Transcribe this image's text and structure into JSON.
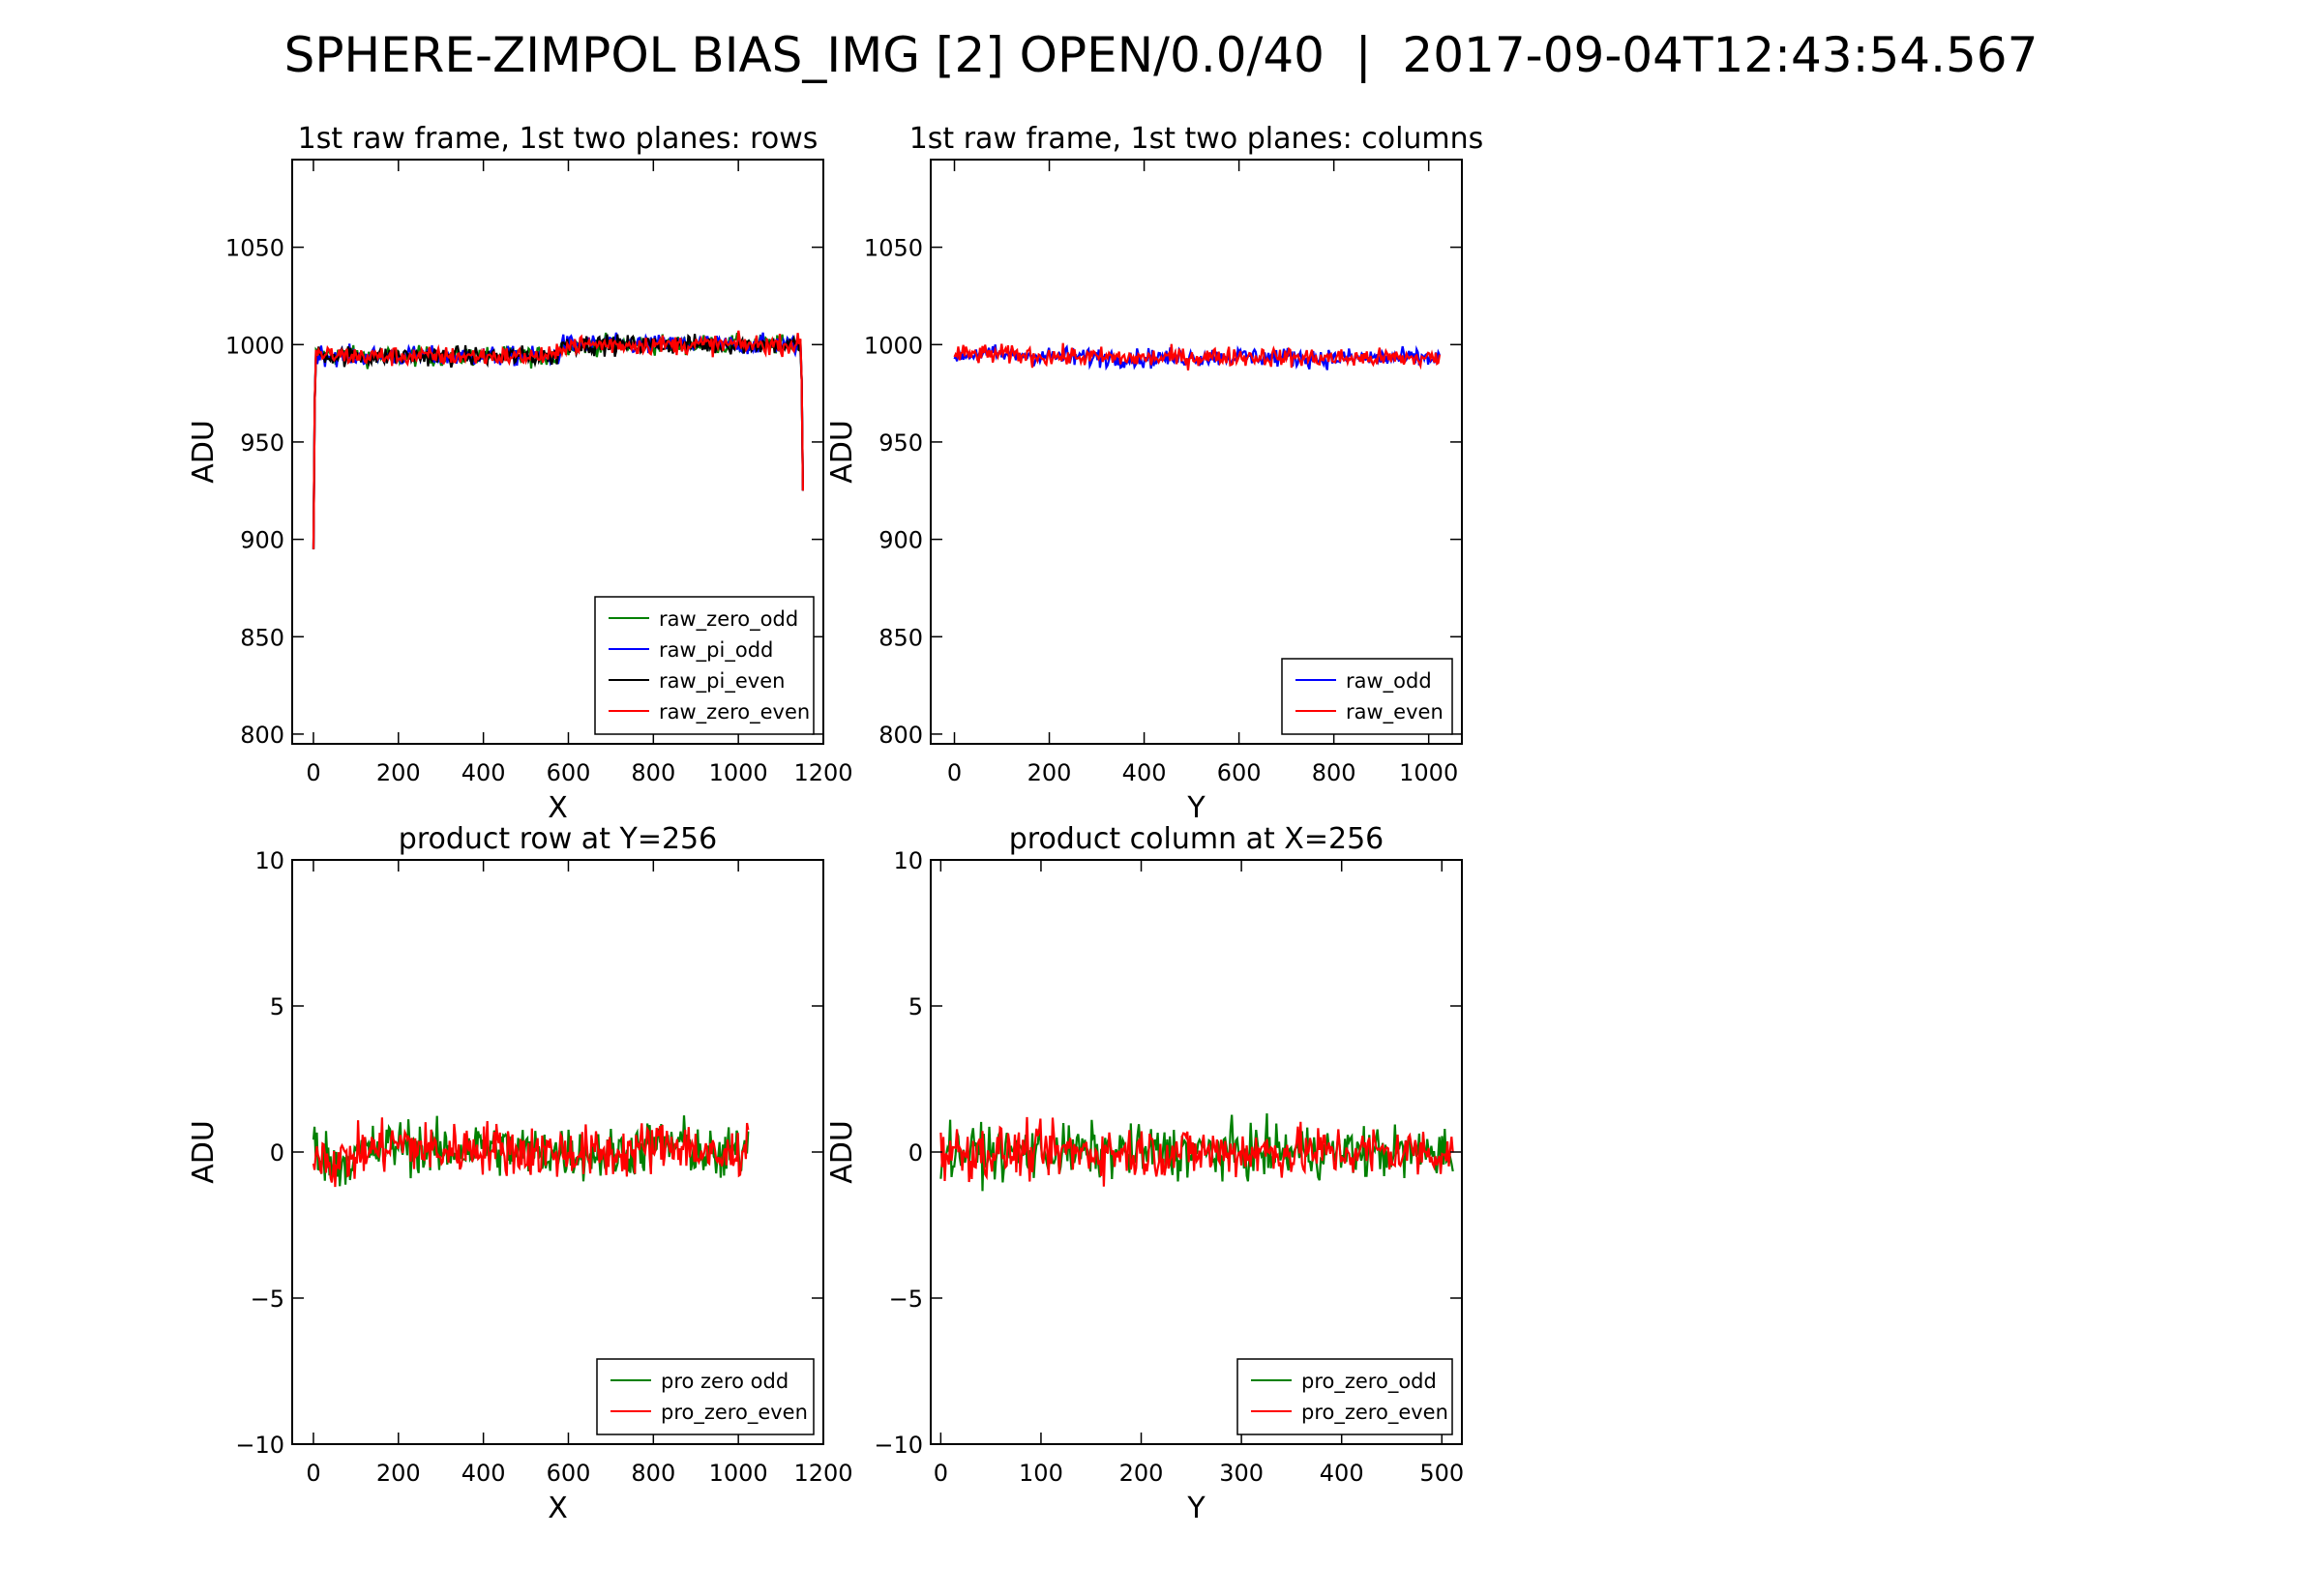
{
  "figure": {
    "title": "SPHERE-ZIMPOL BIAS_IMG [2] OPEN/0.0/40  |  2017-09-04T12:43:54.567"
  },
  "chart_data": [
    {
      "type": "line",
      "title": "1st raw frame, 1st two planes: rows",
      "xlabel": "X",
      "ylabel": "ADU",
      "xlim": [
        -50,
        1200
      ],
      "ylim": [
        795,
        1095
      ],
      "xticks": [
        0,
        200,
        400,
        600,
        800,
        1000,
        1200
      ],
      "yticks": [
        800,
        850,
        900,
        950,
        1000,
        1050
      ],
      "grid": false,
      "legend_position": "lower-right",
      "series": [
        {
          "name": "raw_zero_odd",
          "color": "#008000",
          "x": [
            0,
            4,
            8,
            100,
            200,
            300,
            400,
            500,
            575,
            585,
            700,
            800,
            900,
            1000,
            1100,
            1148,
            1152
          ],
          "y": [
            895,
            995,
            995,
            994,
            994,
            994,
            994,
            994,
            994,
            1000,
            1000,
            1000,
            1000,
            1000,
            1000,
            1000,
            925
          ],
          "noise": 2.5
        },
        {
          "name": "raw_pi_odd",
          "color": "#0000ff",
          "x": [
            0,
            4,
            8,
            100,
            200,
            300,
            400,
            500,
            575,
            585,
            700,
            800,
            900,
            1000,
            1100,
            1148,
            1152
          ],
          "y": [
            895,
            995,
            995,
            994,
            994,
            994,
            994,
            994,
            994,
            1000,
            1000,
            1000,
            1000,
            1000,
            1000,
            1000,
            925
          ],
          "noise": 2.5
        },
        {
          "name": "raw_pi_even",
          "color": "#000000",
          "x": [
            0,
            4,
            8,
            100,
            200,
            300,
            400,
            500,
            575,
            585,
            700,
            800,
            900,
            1000,
            1100,
            1148,
            1152
          ],
          "y": [
            895,
            995,
            995,
            994,
            994,
            994,
            994,
            994,
            994,
            1000,
            1000,
            1000,
            1000,
            1000,
            1000,
            1000,
            925
          ],
          "noise": 2.5
        },
        {
          "name": "raw_zero_even",
          "color": "#ff0000",
          "x": [
            0,
            4,
            8,
            100,
            200,
            300,
            400,
            500,
            575,
            585,
            700,
            800,
            900,
            1000,
            1100,
            1148,
            1152
          ],
          "y": [
            895,
            995,
            995,
            994,
            994,
            994,
            994,
            994,
            994,
            1000,
            1000,
            1000,
            1000,
            1000,
            1000,
            1000,
            925
          ],
          "noise": 2.5
        }
      ]
    },
    {
      "type": "line",
      "title": "1st raw frame, 1st two planes: columns",
      "xlabel": "Y",
      "ylabel": "ADU",
      "xlim": [
        -50,
        1070
      ],
      "ylim": [
        795,
        1095
      ],
      "xticks": [
        0,
        200,
        400,
        600,
        800,
        1000
      ],
      "yticks": [
        800,
        850,
        900,
        950,
        1000,
        1050
      ],
      "grid": false,
      "legend_position": "lower-right",
      "series": [
        {
          "name": "raw_odd",
          "color": "#0000ff",
          "x": [
            0,
            100,
            200,
            400,
            600,
            800,
            1023
          ],
          "y": [
            995,
            995,
            994,
            993,
            994,
            993,
            993
          ],
          "noise": 2.5
        },
        {
          "name": "raw_even",
          "color": "#ff0000",
          "x": [
            0,
            100,
            200,
            400,
            600,
            800,
            1023
          ],
          "y": [
            995,
            995,
            994,
            993,
            994,
            993,
            993
          ],
          "noise": 2.5
        }
      ]
    },
    {
      "type": "line",
      "title": "product row at Y=256",
      "xlabel": "X",
      "ylabel": "ADU",
      "xlim": [
        -50,
        1200
      ],
      "ylim": [
        -10,
        10
      ],
      "xticks": [
        0,
        200,
        400,
        600,
        800,
        1000,
        1200
      ],
      "yticks": [
        -10,
        -5,
        0,
        5,
        10
      ],
      "ytick_labels": [
        "−10",
        "−5",
        "0",
        "5",
        "10"
      ],
      "grid": false,
      "legend_position": "lower-right",
      "series": [
        {
          "name": "pro zero odd",
          "color": "#008000",
          "x": [
            0,
            50,
            100,
            200,
            300,
            400,
            500,
            600,
            700,
            800,
            870,
            950,
            1023
          ],
          "y": [
            0.2,
            -0.4,
            -0.1,
            0.3,
            0.0,
            0.2,
            0.0,
            0.0,
            -0.1,
            0.2,
            0.3,
            -0.3,
            0.2
          ],
          "noise": 0.45
        },
        {
          "name": "pro_zero_even",
          "color": "#ff0000",
          "x": [
            0,
            50,
            100,
            200,
            300,
            400,
            500,
            600,
            700,
            800,
            870,
            950,
            1023
          ],
          "y": [
            0.2,
            -0.4,
            -0.1,
            0.3,
            0.0,
            0.2,
            0.0,
            0.0,
            -0.1,
            0.2,
            0.3,
            -0.3,
            0.2
          ],
          "noise": 0.45
        }
      ]
    },
    {
      "type": "line",
      "title": "product column at X=256",
      "xlabel": "Y",
      "ylabel": "ADU",
      "xlim": [
        -10,
        520
      ],
      "ylim": [
        -10,
        10
      ],
      "xticks": [
        0,
        100,
        200,
        300,
        400,
        500
      ],
      "yticks": [
        -10,
        -5,
        0,
        5,
        10
      ],
      "ytick_labels": [
        "−10",
        "−5",
        "0",
        "5",
        "10"
      ],
      "grid": false,
      "legend_position": "lower-right",
      "series": [
        {
          "name": "pro_zero_odd",
          "color": "#008000",
          "x": [
            0,
            100,
            200,
            300,
            400,
            511
          ],
          "y": [
            0,
            0,
            0,
            0,
            0,
            0
          ],
          "noise": 0.45
        },
        {
          "name": "pro_zero_even",
          "color": "#ff0000",
          "x": [
            0,
            100,
            200,
            300,
            400,
            511
          ],
          "y": [
            0,
            0,
            0,
            0,
            0,
            0
          ],
          "noise": 0.45
        }
      ]
    }
  ]
}
